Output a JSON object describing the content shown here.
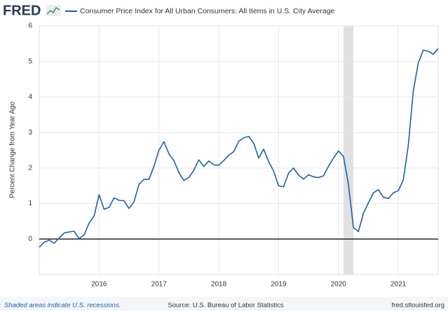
{
  "logo": "FRED",
  "chart_data": {
    "type": "line",
    "title": "Consumer Price Index for All Urban Consumers: All Items in U.S. City Average",
    "y_label": "Percent Change from Year Ago",
    "x": [
      "2015-01",
      "2015-02",
      "2015-03",
      "2015-04",
      "2015-05",
      "2015-06",
      "2015-07",
      "2015-08",
      "2015-09",
      "2015-10",
      "2015-11",
      "2015-12",
      "2016-01",
      "2016-02",
      "2016-03",
      "2016-04",
      "2016-05",
      "2016-06",
      "2016-07",
      "2016-08",
      "2016-09",
      "2016-10",
      "2016-11",
      "2016-12",
      "2017-01",
      "2017-02",
      "2017-03",
      "2017-04",
      "2017-05",
      "2017-06",
      "2017-07",
      "2017-08",
      "2017-09",
      "2017-10",
      "2017-11",
      "2017-12",
      "2018-01",
      "2018-02",
      "2018-03",
      "2018-04",
      "2018-05",
      "2018-06",
      "2018-07",
      "2018-08",
      "2018-09",
      "2018-10",
      "2018-11",
      "2018-12",
      "2019-01",
      "2019-02",
      "2019-03",
      "2019-04",
      "2019-05",
      "2019-06",
      "2019-07",
      "2019-08",
      "2019-09",
      "2019-10",
      "2019-11",
      "2019-12",
      "2020-01",
      "2020-02",
      "2020-03",
      "2020-04",
      "2020-05",
      "2020-06",
      "2020-07",
      "2020-08",
      "2020-09",
      "2020-10",
      "2020-11",
      "2020-12",
      "2021-01",
      "2021-02",
      "2021-03",
      "2021-04",
      "2021-05",
      "2021-06",
      "2021-07",
      "2021-08",
      "2021-09"
    ],
    "series": [
      {
        "name": "Consumer Price Index for All Urban Consumers: All Items in U.S. City Average",
        "color": "#1f5fa8",
        "values": [
          -0.23,
          -0.09,
          -0.03,
          -0.12,
          0.03,
          0.17,
          0.2,
          0.22,
          0.01,
          0.12,
          0.45,
          0.65,
          1.25,
          0.84,
          0.89,
          1.16,
          1.09,
          1.08,
          0.86,
          1.05,
          1.54,
          1.68,
          1.68,
          2.05,
          2.5,
          2.74,
          2.4,
          2.21,
          1.87,
          1.65,
          1.73,
          1.94,
          2.23,
          2.04,
          2.2,
          2.09,
          2.08,
          2.21,
          2.36,
          2.46,
          2.75,
          2.85,
          2.89,
          2.7,
          2.28,
          2.53,
          2.18,
          1.91,
          1.5,
          1.47,
          1.86,
          2.0,
          1.8,
          1.69,
          1.81,
          1.75,
          1.73,
          1.78,
          2.05,
          2.28,
          2.48,
          2.33,
          1.54,
          0.33,
          0.21,
          0.72,
          1.02,
          1.3,
          1.39,
          1.18,
          1.14,
          1.3,
          1.36,
          1.66,
          2.63,
          4.16,
          4.95,
          5.32,
          5.29,
          5.2,
          5.36
        ]
      }
    ],
    "xlim": [
      "2015-01",
      "2021-09"
    ],
    "xticks": [
      "2016",
      "2017",
      "2018",
      "2019",
      "2020",
      "2021"
    ],
    "ylim": [
      -1,
      6
    ],
    "yticks": [
      0,
      1,
      2,
      3,
      4,
      5,
      6
    ],
    "grid": true,
    "recessions": [
      {
        "start": "2020-02",
        "end": "2020-04"
      }
    ],
    "footer_note": "Shaded areas indicate U.S. recessions.",
    "source": "Source: U.S. Bureau of Labor Statistics",
    "site": "fred.stlouisfed.org"
  }
}
